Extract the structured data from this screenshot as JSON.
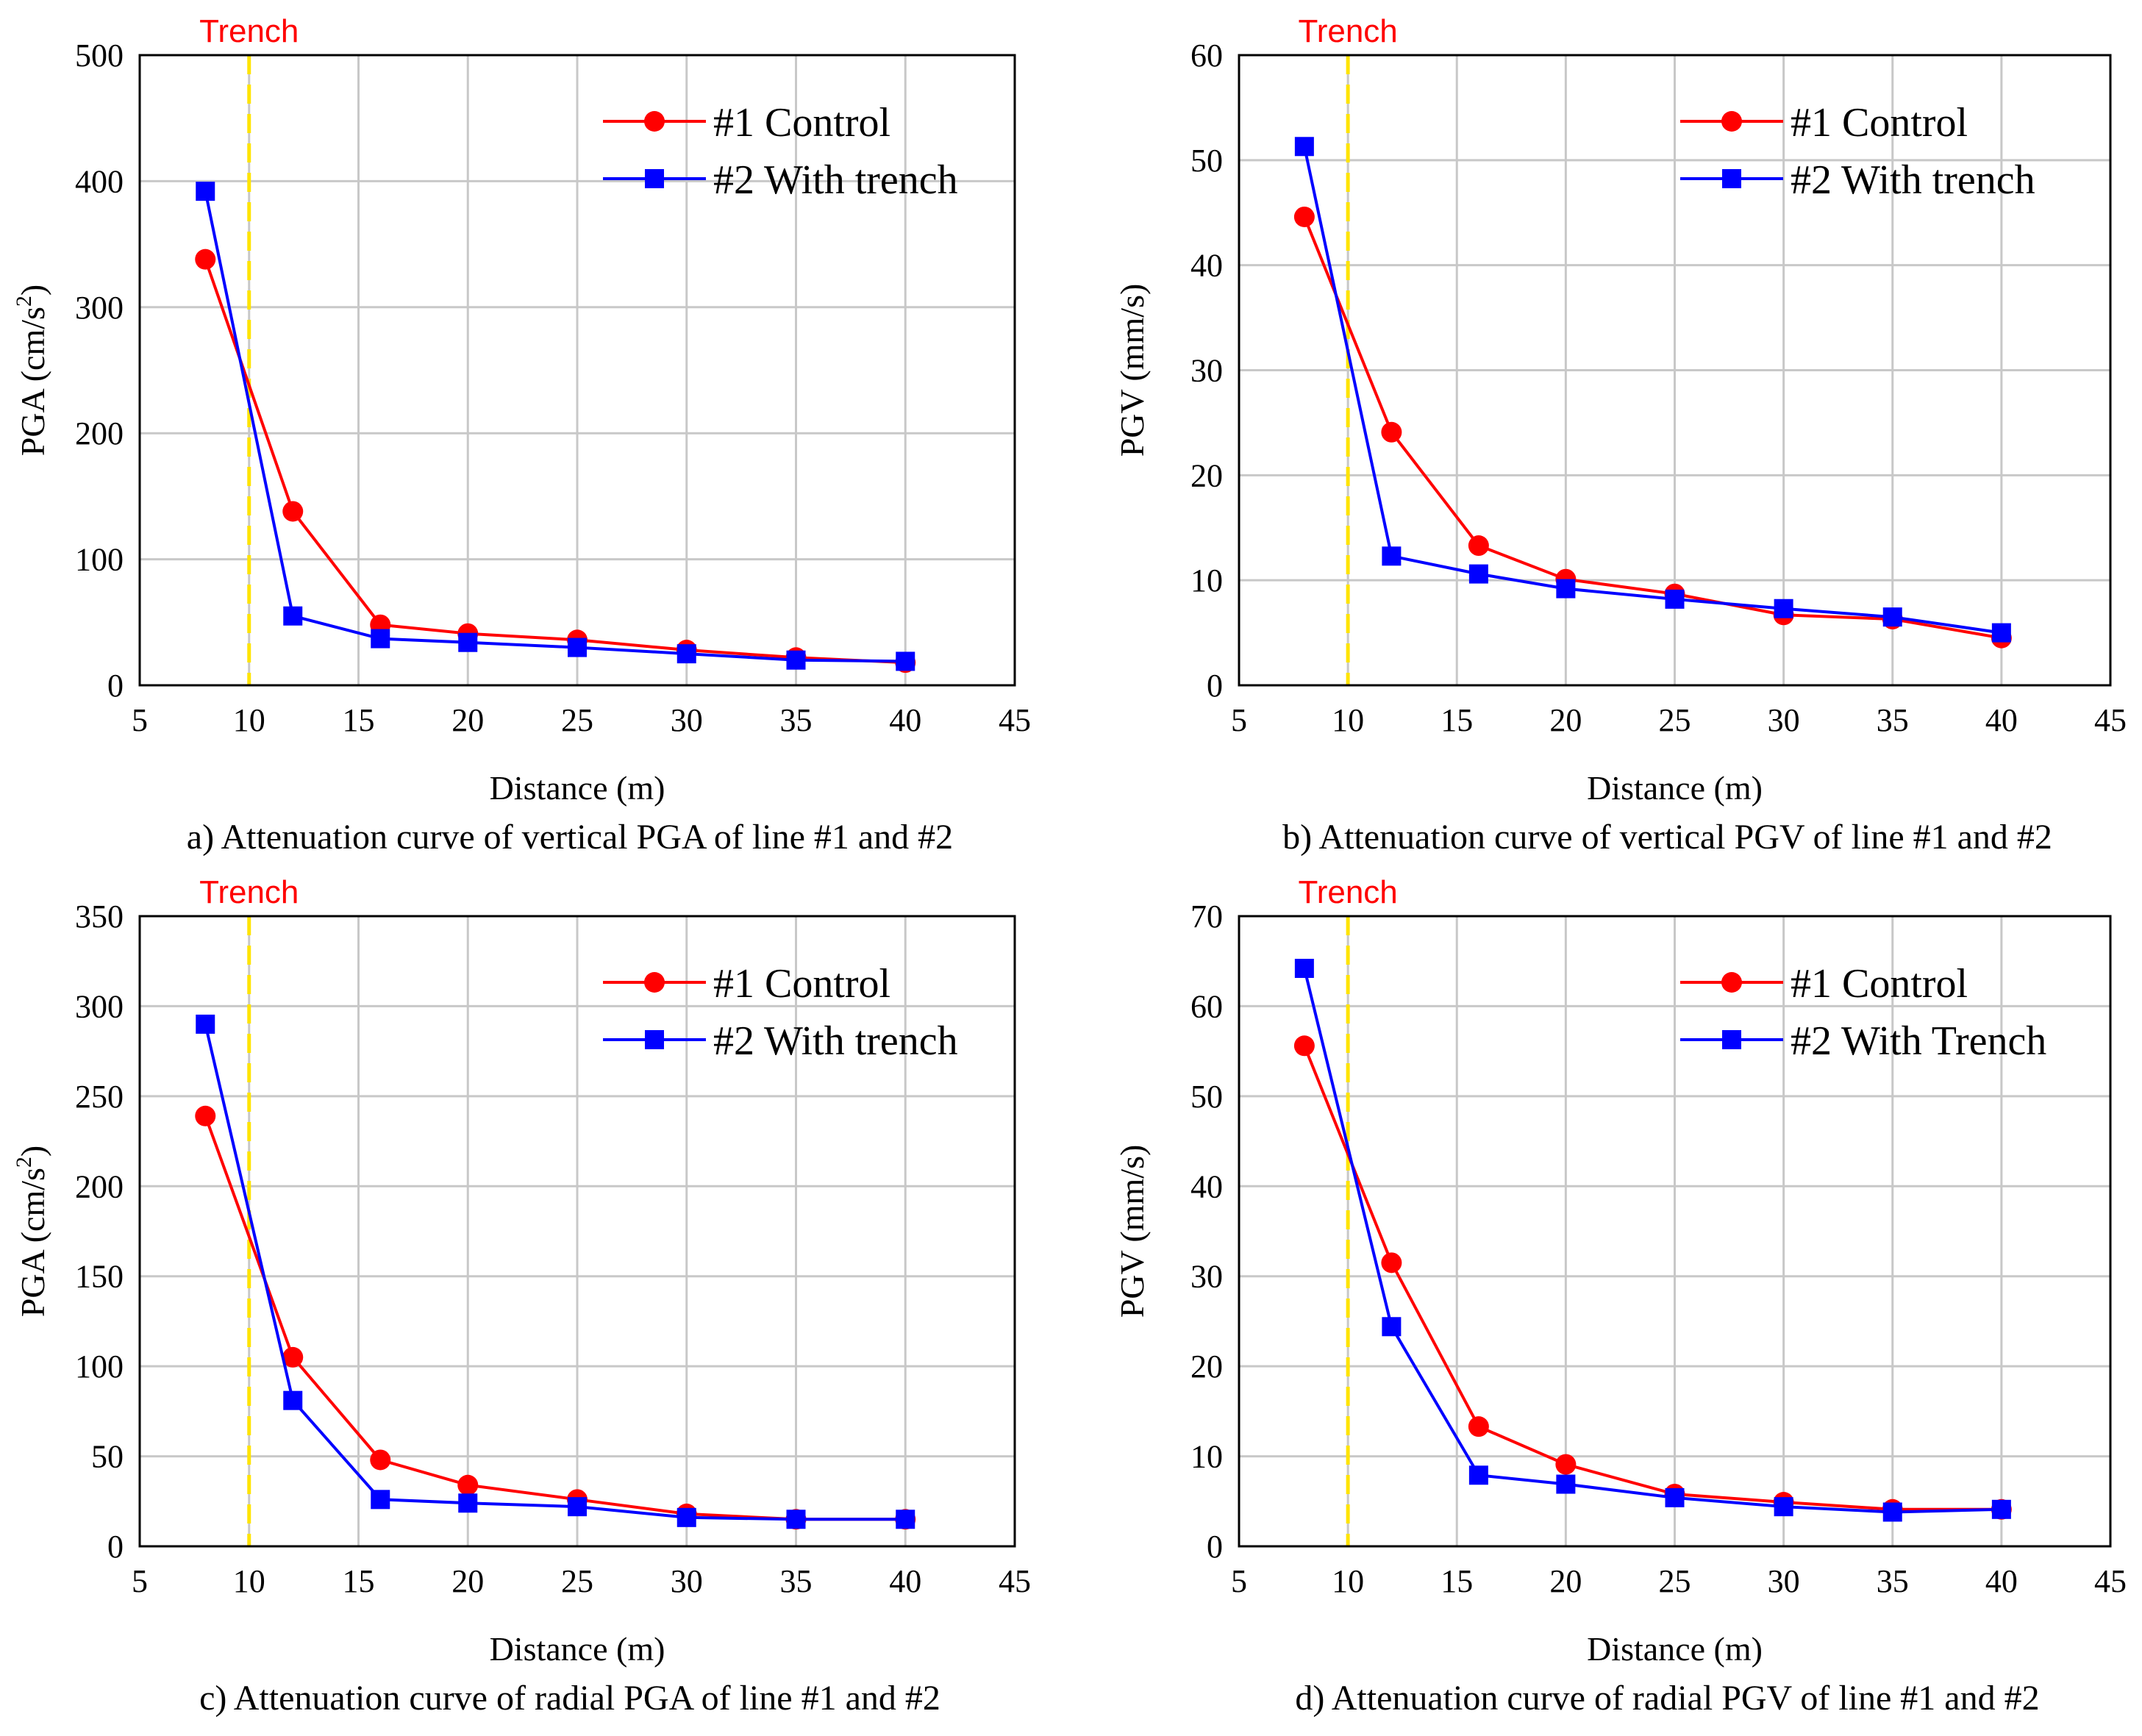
{
  "chart_data": [
    {
      "type": "line",
      "caption": "a) Attenuation curve of vertical PGA of line #1 and #2",
      "xlabel": "Distance (m)",
      "ylabel_main": "PGA (cm/s",
      "ylabel_sup": "2",
      "ylabel_close": ")",
      "xlim": [
        5,
        45
      ],
      "ylim": [
        0,
        500
      ],
      "xticks": [
        "5",
        "10",
        "15",
        "20",
        "25",
        "30",
        "35",
        "40",
        "45"
      ],
      "yticks": [
        "0",
        "100",
        "200",
        "300",
        "400",
        "500"
      ],
      "grid": true,
      "legend_position": "top-right",
      "trench": {
        "label": "Trench",
        "x": 10
      },
      "series": [
        {
          "name": "#1 Control",
          "marker": "circle",
          "color": "#ff0000",
          "x": [
            8,
            12,
            16,
            20,
            25,
            30,
            35,
            40
          ],
          "y": [
            338,
            138,
            48,
            41,
            36,
            28,
            22,
            18
          ]
        },
        {
          "name": "#2 With trench",
          "marker": "square",
          "color": "#0000ff",
          "x": [
            8,
            12,
            16,
            20,
            25,
            30,
            35,
            40
          ],
          "y": [
            392,
            55,
            37,
            34,
            30,
            25,
            20,
            19
          ]
        }
      ]
    },
    {
      "type": "line",
      "caption": "b) Attenuation curve of vertical PGV of line #1 and #2",
      "xlabel": "Distance (m)",
      "ylabel_main": "PGV (mm/s)",
      "ylabel_sup": "",
      "ylabel_close": "",
      "xlim": [
        5,
        45
      ],
      "ylim": [
        0,
        60
      ],
      "xticks": [
        "5",
        "10",
        "15",
        "20",
        "25",
        "30",
        "35",
        "40",
        "45"
      ],
      "yticks": [
        "0",
        "10",
        "20",
        "30",
        "40",
        "50",
        "60"
      ],
      "grid": true,
      "legend_position": "top-right",
      "trench": {
        "label": "Trench",
        "x": 10
      },
      "series": [
        {
          "name": "#1 Control",
          "marker": "circle",
          "color": "#ff0000",
          "x": [
            8,
            12,
            16,
            20,
            25,
            30,
            35,
            40
          ],
          "y": [
            44.6,
            24.1,
            13.3,
            10.1,
            8.7,
            6.7,
            6.3,
            4.5
          ]
        },
        {
          "name": "#2 With trench",
          "marker": "square",
          "color": "#0000ff",
          "x": [
            8,
            12,
            16,
            20,
            25,
            30,
            35,
            40
          ],
          "y": [
            51.3,
            12.3,
            10.6,
            9.2,
            8.2,
            7.3,
            6.5,
            5.0
          ]
        }
      ]
    },
    {
      "type": "line",
      "caption": "c) Attenuation curve of radial PGA of line #1 and #2",
      "xlabel": "Distance (m)",
      "ylabel_main": "PGA (cm/s",
      "ylabel_sup": "2",
      "ylabel_close": ")",
      "xlim": [
        5,
        45
      ],
      "ylim": [
        0,
        350
      ],
      "xticks": [
        "5",
        "10",
        "15",
        "20",
        "25",
        "30",
        "35",
        "40",
        "45"
      ],
      "yticks": [
        "0",
        "50",
        "100",
        "150",
        "200",
        "250",
        "300",
        "350"
      ],
      "grid": true,
      "legend_position": "top-right",
      "trench": {
        "label": "Trench",
        "x": 10
      },
      "series": [
        {
          "name": "#1 Control",
          "marker": "circle",
          "color": "#ff0000",
          "x": [
            8,
            12,
            16,
            20,
            25,
            30,
            35,
            40
          ],
          "y": [
            239,
            105,
            48,
            34,
            26,
            18,
            15,
            15
          ]
        },
        {
          "name": "#2 With trench",
          "marker": "square",
          "color": "#0000ff",
          "x": [
            8,
            12,
            16,
            20,
            25,
            30,
            35,
            40
          ],
          "y": [
            290,
            81,
            26,
            24,
            22,
            16,
            15,
            15
          ]
        }
      ]
    },
    {
      "type": "line",
      "caption": "d) Attenuation curve of radial PGV of line #1 and #2",
      "xlabel": "Distance (m)",
      "ylabel_main": "PGV (mm/s)",
      "ylabel_sup": "",
      "ylabel_close": "",
      "xlim": [
        5,
        45
      ],
      "ylim": [
        0,
        70
      ],
      "xticks": [
        "5",
        "10",
        "15",
        "20",
        "25",
        "30",
        "35",
        "40",
        "45"
      ],
      "yticks": [
        "0",
        "10",
        "20",
        "30",
        "40",
        "50",
        "60",
        "70"
      ],
      "grid": true,
      "legend_position": "top-right",
      "trench": {
        "label": "Trench",
        "x": 10
      },
      "series": [
        {
          "name": "#1 Control",
          "marker": "circle",
          "color": "#ff0000",
          "x": [
            8,
            12,
            16,
            20,
            25,
            30,
            35,
            40
          ],
          "y": [
            55.6,
            31.5,
            13.3,
            9.1,
            5.8,
            4.9,
            4.1,
            4.1
          ]
        },
        {
          "name": "#2 With Trench",
          "marker": "square",
          "color": "#0000ff",
          "x": [
            8,
            12,
            16,
            20,
            25,
            30,
            35,
            40
          ],
          "y": [
            64.2,
            24.4,
            7.9,
            6.9,
            5.4,
            4.4,
            3.8,
            4.1
          ]
        }
      ]
    }
  ]
}
